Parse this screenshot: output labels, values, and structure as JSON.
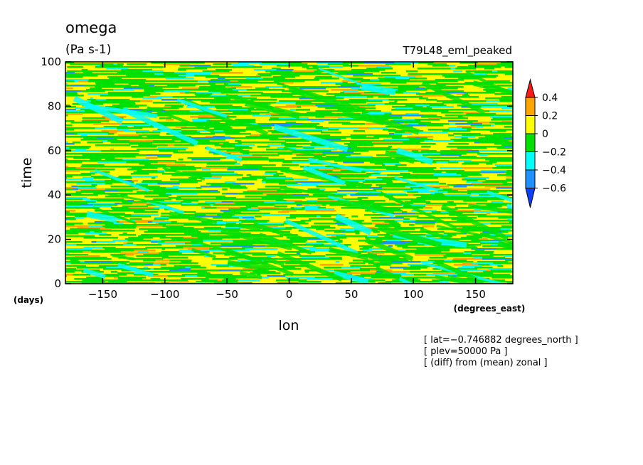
{
  "chart_data": {
    "type": "heatmap",
    "title": "omega",
    "units": "(Pa s-1)",
    "experiment": "T79L48_eml_peaked",
    "xlabel": "lon",
    "ylabel": "time",
    "x_units": "(degrees_east)",
    "y_units": "(days)",
    "xlim": [
      -180,
      180
    ],
    "ylim": [
      0,
      100
    ],
    "x_ticks": [
      -150,
      -100,
      -50,
      0,
      50,
      100,
      150
    ],
    "x_tick_labels": [
      "−150",
      "−100",
      "−50",
      "0",
      "50",
      "100",
      "150"
    ],
    "y_ticks": [
      0,
      20,
      40,
      60,
      80,
      100
    ],
    "y_tick_labels": [
      "0",
      "20",
      "40",
      "60",
      "80",
      "100"
    ],
    "colorbar": {
      "levels": [
        0.4,
        0.2,
        0,
        -0.2,
        -0.4,
        -0.6
      ],
      "level_labels": [
        "0.4",
        "0.2",
        "0",
        "−0.2",
        "−0.4",
        "−0.6"
      ],
      "colors": [
        "#ff1a1a",
        "#ffa500",
        "#ffff00",
        "#00e000",
        "#00ffff",
        "#1e90ff",
        "#1040ff"
      ]
    },
    "annotations": [
      "[ lat=−0.746882 degrees_north ]",
      "[ plev=50000 Pa ]",
      "[ (diff) from (mean) zonal ]"
    ]
  }
}
